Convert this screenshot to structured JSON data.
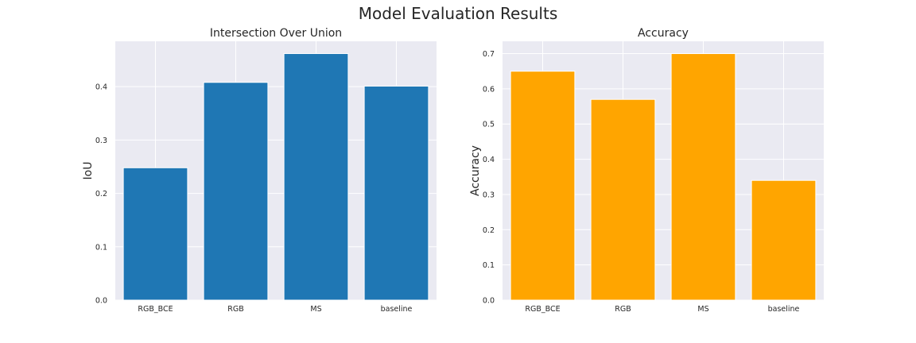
{
  "suptitle": "Model Evaluation Results",
  "chart_data": [
    {
      "type": "bar",
      "title": "Intersection Over Union",
      "xlabel": "",
      "ylabel": "IoU",
      "categories": [
        "RGB_BCE",
        "RGB",
        "MS",
        "baseline"
      ],
      "values": [
        0.248,
        0.408,
        0.462,
        0.401
      ],
      "ylim": [
        0,
        0.485
      ],
      "yticks": [
        0.0,
        0.1,
        0.2,
        0.3,
        0.4
      ],
      "ytick_labels": [
        "0.0",
        "0.1",
        "0.2",
        "0.3",
        "0.4"
      ],
      "color": "#1f77b4",
      "grid": true
    },
    {
      "type": "bar",
      "title": "Accuracy",
      "xlabel": "",
      "ylabel": "Accuracy",
      "categories": [
        "RGB_BCE",
        "RGB",
        "MS",
        "baseline"
      ],
      "values": [
        0.65,
        0.57,
        0.7,
        0.34
      ],
      "ylim": [
        0,
        0.735
      ],
      "yticks": [
        0.0,
        0.1,
        0.2,
        0.3,
        0.4,
        0.5,
        0.6,
        0.7
      ],
      "ytick_labels": [
        "0.0",
        "0.1",
        "0.2",
        "0.3",
        "0.4",
        "0.5",
        "0.6",
        "0.7"
      ],
      "color": "#ffa500",
      "grid": true
    }
  ]
}
